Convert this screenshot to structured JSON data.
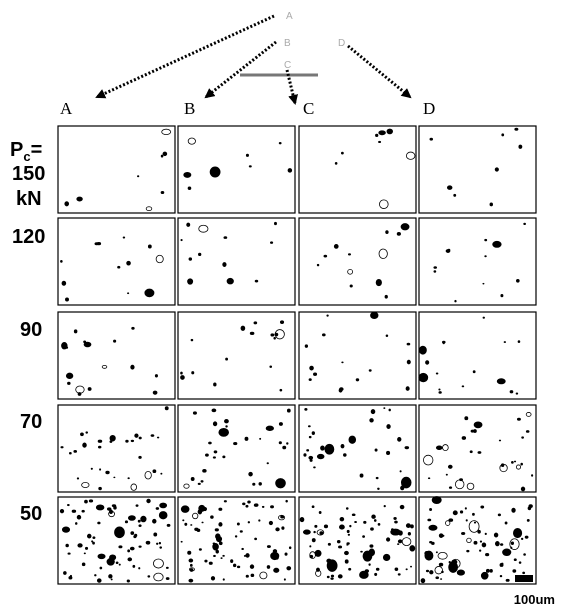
{
  "sample_labels": [
    "A",
    "B",
    "C",
    "D"
  ],
  "columns": [
    "A",
    "B",
    "C",
    "D"
  ],
  "rows": [
    {
      "symbol": "P",
      "subscript": "c",
      "equals": "=",
      "value": "150",
      "unit": "kN"
    },
    {
      "value": "120"
    },
    {
      "value": "90"
    },
    {
      "value": "70"
    },
    {
      "value": "50"
    }
  ],
  "scale_bar": "100um"
}
